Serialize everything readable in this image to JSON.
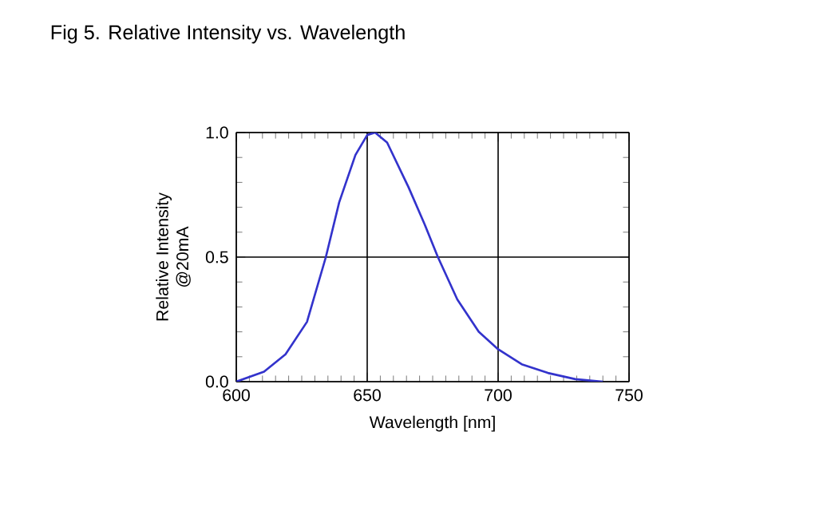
{
  "chart_data": {
    "type": "line",
    "title": "Fig 5. Relative Intensity vs. Wavelength",
    "xlabel": "Wavelength [nm]",
    "ylabel": "Relative Intensity\n@20mA",
    "x": [
      600,
      610.6,
      618.8,
      627,
      634.2,
      639.3,
      645.5,
      650,
      653,
      657.6,
      665.8,
      672,
      677,
      684.4,
      692.6,
      700,
      709,
      719,
      729.5,
      740
    ],
    "series": [
      {
        "color": "#3333cc",
        "values": [
          0,
          0.04,
          0.11,
          0.24,
          0.5,
          0.72,
          0.91,
          0.99,
          1.0,
          0.96,
          0.78,
          0.63,
          0.5,
          0.33,
          0.2,
          0.13,
          0.07,
          0.035,
          0.01,
          0
        ]
      }
    ],
    "xlim": [
      600,
      750
    ],
    "ylim": [
      0,
      1
    ],
    "xticks": [
      600,
      650,
      700,
      750
    ],
    "yticks": [
      {
        "value": 0,
        "label": "0.0"
      },
      {
        "value": 0.5,
        "label": "0.5"
      },
      {
        "value": 1,
        "label": "1.0"
      }
    ],
    "grid": true,
    "marker": "none",
    "line_style": "solid"
  }
}
